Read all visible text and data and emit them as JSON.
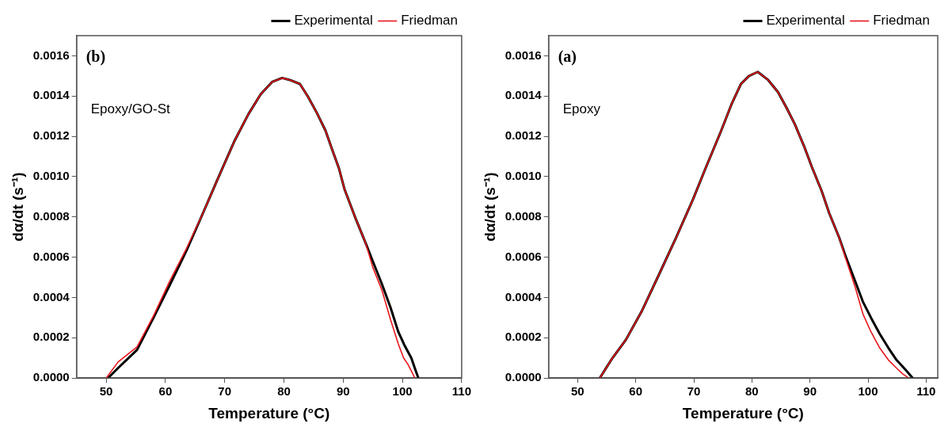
{
  "chart_data": [
    {
      "type": "line",
      "xlabel": "Temperature (°C)",
      "ylabel": "dα/dt (s⁻¹)",
      "annotations": [
        "(b)",
        "Epoxy/GO-St"
      ],
      "xlim": [
        45,
        110
      ],
      "xticks": [
        50,
        60,
        70,
        80,
        90,
        100,
        110
      ],
      "ylim": [
        0,
        0.0017
      ],
      "yticks": [
        {
          "value": 0,
          "label": "0.0000"
        },
        {
          "value": 0.0002,
          "label": "0.0002"
        },
        {
          "value": 0.0004,
          "label": "0.0004"
        },
        {
          "value": 0.0006,
          "label": "0.0006"
        },
        {
          "value": 0.0008,
          "label": "0.0008"
        },
        {
          "value": 0.001,
          "label": "0.0010"
        },
        {
          "value": 0.0012,
          "label": "0.0012"
        },
        {
          "value": 0.0014,
          "label": "0.0014"
        },
        {
          "value": 0.0016,
          "label": "0.0016"
        }
      ],
      "grid": false,
      "legend": "top right",
      "marker": "none",
      "line_style": "solid",
      "series": [
        {
          "name": "Experimental",
          "color": "#000000",
          "x": [
            50.3,
            52,
            55.2,
            58,
            60.7,
            63.5,
            66.2,
            69,
            71.7,
            74,
            76.1,
            78,
            79.7,
            81,
            82.7,
            84,
            85.5,
            87,
            88.2,
            89.3,
            90.2,
            92,
            93.8,
            95,
            96.5,
            98,
            99.3,
            100.4,
            101.5,
            102.2,
            102.7
          ],
          "values": [
            0,
            5e-05,
            0.00014,
            0.0003,
            0.00046,
            0.00063,
            0.00081,
            0.001,
            0.00118,
            0.00131,
            0.00141,
            0.00147,
            0.00149,
            0.00148,
            0.00146,
            0.0014,
            0.00132,
            0.00123,
            0.00113,
            0.00104,
            0.00094,
            0.0008,
            0.00067,
            0.00058,
            0.00047,
            0.00035,
            0.00023,
            0.00016,
            0.0001,
            4e-05,
            0
          ]
        },
        {
          "name": "Friedman",
          "color": "#e8161b",
          "x": [
            50,
            52,
            55.2,
            58,
            60.7,
            63.5,
            66.2,
            69,
            71.7,
            74,
            76.1,
            78,
            79.7,
            81,
            82.7,
            84,
            85.5,
            87,
            88.2,
            89.3,
            90.2,
            92,
            93.8,
            95,
            96.5,
            98,
            99.3,
            100.2,
            100.9,
            101.6,
            102.1
          ],
          "values": [
            0,
            8e-05,
            0.000155,
            0.00031,
            0.00048,
            0.00064,
            0.00081,
            0.001,
            0.00118,
            0.00131,
            0.00141,
            0.00147,
            0.00149,
            0.00148,
            0.00146,
            0.0014,
            0.00132,
            0.00123,
            0.00113,
            0.00104,
            0.00094,
            0.0008,
            0.00067,
            0.00055,
            0.00044,
            0.00029,
            0.00017,
            0.0001,
            7e-05,
            3e-05,
            0
          ]
        }
      ]
    },
    {
      "type": "line",
      "xlabel": "Temperature (°C)",
      "ylabel": "dα/dt (s⁻¹)",
      "annotations": [
        "(a)",
        "Epoxy"
      ],
      "xlim": [
        45,
        112
      ],
      "xticks": [
        50,
        60,
        70,
        80,
        90,
        100,
        110
      ],
      "ylim": [
        0,
        0.0017
      ],
      "yticks": [
        {
          "value": 0,
          "label": "0.0000"
        },
        {
          "value": 0.0002,
          "label": "0.0002"
        },
        {
          "value": 0.0004,
          "label": "0.0004"
        },
        {
          "value": 0.0006,
          "label": "0.0006"
        },
        {
          "value": 0.0008,
          "label": "0.0008"
        },
        {
          "value": 0.001,
          "label": "0.0010"
        },
        {
          "value": 0.0012,
          "label": "0.0012"
        },
        {
          "value": 0.0014,
          "label": "0.0014"
        },
        {
          "value": 0.0016,
          "label": "0.0016"
        }
      ],
      "grid": false,
      "legend": "top right",
      "marker": "none",
      "line_style": "solid",
      "series": [
        {
          "name": "Experimental",
          "color": "#000000",
          "x": [
            53.8,
            56,
            58.3,
            61,
            64.1,
            67,
            69.9,
            72,
            74.6,
            76.5,
            78.1,
            79.5,
            81,
            82.8,
            84.5,
            86,
            87.4,
            89,
            90.3,
            92,
            93.3,
            95,
            96.2,
            97.8,
            99.1,
            100.5,
            102,
            103.5,
            104.9,
            106.5,
            107.7
          ],
          "values": [
            0,
            0.0001,
            0.00019,
            0.00033,
            0.00052,
            0.0007,
            0.00089,
            0.00104,
            0.00122,
            0.00136,
            0.00146,
            0.0015,
            0.00152,
            0.00148,
            0.00142,
            0.00134,
            0.00126,
            0.00115,
            0.00105,
            0.00093,
            0.00082,
            0.0007,
            0.0006,
            0.00048,
            0.00038,
            0.0003,
            0.00022,
            0.00015,
            9e-05,
            4e-05,
            0
          ]
        },
        {
          "name": "Friedman",
          "color": "#e8161b",
          "x": [
            53.8,
            56,
            58.3,
            61,
            64.1,
            67,
            69.9,
            72,
            74.6,
            76.5,
            78.1,
            79.5,
            81,
            82.8,
            84.5,
            86,
            87.4,
            89,
            90.3,
            92,
            93.3,
            95,
            96.2,
            97.8,
            99.1,
            100.5,
            102,
            103.5,
            104.9,
            106,
            107
          ],
          "values": [
            0,
            0.0001,
            0.00019,
            0.00033,
            0.00052,
            0.0007,
            0.00089,
            0.00104,
            0.00122,
            0.00136,
            0.00146,
            0.0015,
            0.00152,
            0.00148,
            0.00142,
            0.00134,
            0.00126,
            0.00115,
            0.00105,
            0.00093,
            0.00082,
            0.0007,
            0.00059,
            0.00045,
            0.00032,
            0.00023,
            0.00015,
            9e-05,
            5e-05,
            2e-05,
            0
          ]
        }
      ]
    }
  ]
}
